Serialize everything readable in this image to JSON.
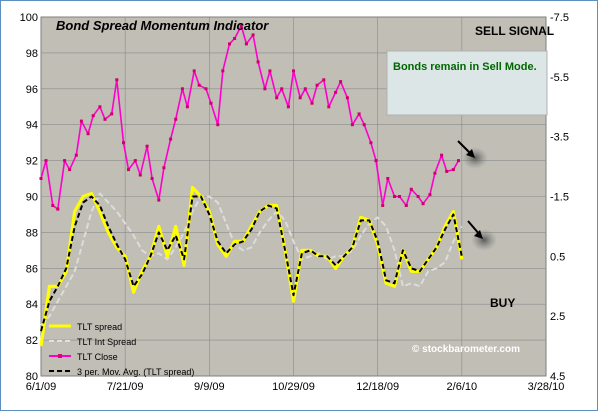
{
  "chart_data": {
    "type": "line",
    "title": "Bond Spread Momentum Indicator",
    "x_ticks": [
      "6/1/09",
      "7/21/09",
      "9/9/09",
      "10/29/09",
      "12/18/09",
      "2/6/10",
      "3/28/10"
    ],
    "x_range": [
      "2009-06-01",
      "2010-03-28"
    ],
    "y_left": {
      "ylim": [
        80,
        100
      ],
      "ticks": [
        80,
        82,
        84,
        86,
        88,
        90,
        92,
        94,
        96,
        98,
        100
      ]
    },
    "y_right": {
      "ylim": [
        4.5,
        -7.5
      ],
      "reversed": true,
      "ticks": [
        "-7.5",
        "-5.5",
        "-3.5",
        "-1.5",
        "0.5",
        "2.5",
        "4.5"
      ]
    },
    "grid": true,
    "legend": {
      "placement": "bottom-left",
      "entries": [
        "TLT spread",
        "TLT Int Spread",
        "TLT Close",
        "3 per. Mov. Avg. (TLT spread)"
      ]
    },
    "annotations": {
      "sell_signal": "SELL SIGNAL",
      "buy": "BUY",
      "note": "Bonds remain in Sell Mode.",
      "watermark": "© stockbarometer.com"
    },
    "series": [
      {
        "name": "TLT Close",
        "axis": "left",
        "color": "#ff00cc",
        "x": [
          "2009-06-01",
          "2009-06-04",
          "2009-06-08",
          "2009-06-11",
          "2009-06-15",
          "2009-06-18",
          "2009-06-22",
          "2009-06-25",
          "2009-06-29",
          "2009-07-02",
          "2009-07-06",
          "2009-07-09",
          "2009-07-13",
          "2009-07-16",
          "2009-07-20",
          "2009-07-23",
          "2009-07-27",
          "2009-07-30",
          "2009-08-03",
          "2009-08-06",
          "2009-08-10",
          "2009-08-13",
          "2009-08-17",
          "2009-08-20",
          "2009-08-24",
          "2009-08-27",
          "2009-08-31",
          "2009-09-03",
          "2009-09-07",
          "2009-09-10",
          "2009-09-14",
          "2009-09-17",
          "2009-09-21",
          "2009-09-24",
          "2009-09-28",
          "2009-10-01",
          "2009-10-05",
          "2009-10-08",
          "2009-10-12",
          "2009-10-15",
          "2009-10-19",
          "2009-10-22",
          "2009-10-26",
          "2009-10-29",
          "2009-11-02",
          "2009-11-05",
          "2009-11-09",
          "2009-11-12",
          "2009-11-16",
          "2009-11-19",
          "2009-11-23",
          "2009-11-26",
          "2009-11-30",
          "2009-12-03",
          "2009-12-07",
          "2009-12-10",
          "2009-12-14",
          "2009-12-17",
          "2009-12-21",
          "2009-12-24",
          "2009-12-28",
          "2009-12-31",
          "2010-01-04",
          "2010-01-07",
          "2010-01-11",
          "2010-01-14",
          "2010-01-18",
          "2010-01-21",
          "2010-01-25",
          "2010-01-28",
          "2010-02-01",
          "2010-02-04"
        ],
        "values": [
          91.0,
          92.0,
          89.5,
          89.3,
          92.0,
          91.5,
          92.3,
          94.2,
          93.5,
          94.5,
          95.0,
          94.3,
          94.6,
          96.5,
          93.0,
          91.5,
          92.0,
          91.2,
          92.8,
          91.0,
          89.8,
          91.6,
          93.2,
          94.3,
          96.0,
          95.0,
          97.0,
          96.2,
          96.0,
          95.2,
          94.0,
          97.0,
          98.5,
          98.8,
          99.5,
          98.5,
          99.0,
          97.5,
          96.0,
          97.0,
          95.5,
          96.0,
          95.0,
          97.0,
          95.5,
          96.0,
          95.2,
          96.2,
          96.5,
          95.0,
          95.8,
          96.4,
          95.5,
          94.0,
          94.6,
          94.0,
          93.0,
          92.0,
          89.5,
          91.0,
          90.0,
          90.0,
          89.5,
          90.4,
          90.0,
          89.6,
          90.1,
          91.3,
          92.3,
          91.4,
          91.5,
          92.0
        ]
      },
      {
        "name": "TLT spread",
        "axis": "right",
        "color": "#ffff00",
        "x": [
          "2009-06-01",
          "2009-06-06",
          "2009-06-11",
          "2009-06-16",
          "2009-06-21",
          "2009-06-26",
          "2009-07-01",
          "2009-07-06",
          "2009-07-11",
          "2009-07-16",
          "2009-07-21",
          "2009-07-26",
          "2009-07-31",
          "2009-08-05",
          "2009-08-10",
          "2009-08-15",
          "2009-08-20",
          "2009-08-25",
          "2009-08-30",
          "2009-09-04",
          "2009-09-09",
          "2009-09-14",
          "2009-09-19",
          "2009-09-24",
          "2009-09-29",
          "2009-10-04",
          "2009-10-09",
          "2009-10-14",
          "2009-10-19",
          "2009-10-24",
          "2009-10-29",
          "2009-11-03",
          "2009-11-08",
          "2009-11-13",
          "2009-11-18",
          "2009-11-23",
          "2009-11-28",
          "2009-12-03",
          "2009-12-08",
          "2009-12-13",
          "2009-12-18",
          "2009-12-23",
          "2009-12-28",
          "2010-01-02",
          "2010-01-07",
          "2010-01-12",
          "2010-01-17",
          "2010-01-22",
          "2010-01-27",
          "2010-02-01",
          "2010-02-06"
        ],
        "values": [
          3.5,
          1.5,
          1.5,
          1.0,
          -1.0,
          -1.5,
          -1.6,
          -1.0,
          -0.3,
          0.2,
          0.5,
          1.7,
          1.0,
          0.5,
          -0.5,
          0.5,
          -0.5,
          0.8,
          -1.8,
          -1.5,
          -1.0,
          0.1,
          0.5,
          0.0,
          0.0,
          -0.5,
          -1.0,
          -1.2,
          -1.2,
          0.3,
          2.0,
          0.3,
          0.3,
          0.5,
          0.5,
          0.9,
          0.5,
          0.2,
          -0.8,
          -0.7,
          0.1,
          1.4,
          1.5,
          0.3,
          1.0,
          1.0,
          0.6,
          0.2,
          -0.5,
          -1.0,
          0.6
        ]
      },
      {
        "name": "TLT Int Spread",
        "axis": "right",
        "color": "#d0d0d0",
        "x": [
          "2009-06-01",
          "2009-06-06",
          "2009-06-11",
          "2009-06-16",
          "2009-06-21",
          "2009-06-26",
          "2009-07-01",
          "2009-07-06",
          "2009-07-11",
          "2009-07-16",
          "2009-07-21",
          "2009-07-26",
          "2009-07-31",
          "2009-08-05",
          "2009-08-10",
          "2009-08-15",
          "2009-08-20",
          "2009-08-25",
          "2009-08-30",
          "2009-09-04",
          "2009-09-09",
          "2009-09-14",
          "2009-09-19",
          "2009-09-24",
          "2009-09-29",
          "2009-10-04",
          "2009-10-09",
          "2009-10-14",
          "2009-10-19",
          "2009-10-24",
          "2009-10-29",
          "2009-11-03",
          "2009-11-08",
          "2009-11-13",
          "2009-11-18",
          "2009-11-23",
          "2009-11-28",
          "2009-12-03",
          "2009-12-08",
          "2009-12-13",
          "2009-12-18",
          "2009-12-23",
          "2009-12-28",
          "2010-01-02",
          "2010-01-07",
          "2010-01-12",
          "2010-01-17",
          "2010-01-22",
          "2010-01-27",
          "2010-02-01",
          "2010-02-06"
        ],
        "values": [
          2.8,
          2.5,
          2.0,
          1.5,
          1.0,
          0.0,
          -1.0,
          -1.6,
          -1.3,
          -1.0,
          -0.6,
          -0.2,
          0.3,
          0.5,
          0.4,
          0.6,
          0.2,
          -0.3,
          -1.0,
          -1.5,
          -1.5,
          -1.3,
          -0.6,
          0.1,
          0.3,
          0.2,
          -0.3,
          -0.7,
          -1.0,
          -0.7,
          0.0,
          0.6,
          0.5,
          0.4,
          0.6,
          0.5,
          0.5,
          0.3,
          -0.2,
          -0.6,
          -0.8,
          -0.5,
          0.3,
          1.5,
          1.4,
          1.5,
          1.0,
          0.9,
          0.7,
          0.0,
          -0.5
        ]
      },
      {
        "name": "3 per. Mov. Avg. (TLT spread)",
        "axis": "right",
        "color": "#000000",
        "x": [
          "2009-06-01",
          "2009-06-06",
          "2009-06-11",
          "2009-06-16",
          "2009-06-21",
          "2009-06-26",
          "2009-07-01",
          "2009-07-06",
          "2009-07-11",
          "2009-07-16",
          "2009-07-21",
          "2009-07-26",
          "2009-07-31",
          "2009-08-05",
          "2009-08-10",
          "2009-08-15",
          "2009-08-20",
          "2009-08-25",
          "2009-08-30",
          "2009-09-04",
          "2009-09-09",
          "2009-09-14",
          "2009-09-19",
          "2009-09-24",
          "2009-09-29",
          "2009-10-04",
          "2009-10-09",
          "2009-10-14",
          "2009-10-19",
          "2009-10-24",
          "2009-10-29",
          "2009-11-03",
          "2009-11-08",
          "2009-11-13",
          "2009-11-18",
          "2009-11-23",
          "2009-11-28",
          "2009-12-03",
          "2009-12-08",
          "2009-12-13",
          "2009-12-18",
          "2009-12-23",
          "2009-12-28",
          "2010-01-02",
          "2010-01-07",
          "2010-01-12",
          "2010-01-17",
          "2010-01-22",
          "2010-01-27",
          "2010-02-01",
          "2010-02-06"
        ],
        "values": [
          3.0,
          2.0,
          1.5,
          0.9,
          -0.5,
          -1.3,
          -1.5,
          -1.2,
          -0.5,
          0.1,
          0.6,
          1.5,
          1.1,
          0.5,
          -0.3,
          0.3,
          -0.2,
          0.6,
          -1.5,
          -1.5,
          -0.9,
          0.0,
          0.4,
          0.1,
          0.0,
          -0.4,
          -1.0,
          -1.2,
          -1.1,
          0.3,
          1.8,
          0.4,
          0.3,
          0.5,
          0.5,
          0.8,
          0.5,
          0.2,
          -0.7,
          -0.7,
          0.0,
          1.3,
          1.4,
          0.3,
          0.9,
          1.0,
          0.6,
          0.2,
          -0.4,
          -0.9,
          0.5
        ]
      }
    ]
  }
}
